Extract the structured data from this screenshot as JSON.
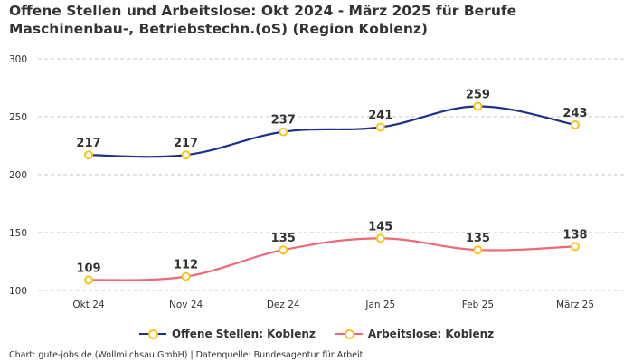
{
  "title": "Offene Stellen und Arbeitslose: Okt 2024 - März 2025 für Berufe Maschinenbau-, Betriebstechn.(oS) (Region Koblenz)",
  "source": "Chart: gute-jobs.de (Wollmilchsau GmbH) | Datenquelle: Bundesagentur für Arbeit",
  "chart_data": {
    "type": "line",
    "title": "Offene Stellen und Arbeitslose: Okt 2024 - März 2025 für Berufe Maschinenbau-, Betriebstechn.(oS) (Region Koblenz)",
    "categories": [
      "Okt 24",
      "Nov 24",
      "Dez 24",
      "Jan 25",
      "Feb 25",
      "März 25"
    ],
    "series": [
      {
        "name": "Offene Stellen: Koblenz",
        "values": [
          217,
          217,
          237,
          241,
          259,
          243
        ],
        "color": "#1f2f8a"
      },
      {
        "name": "Arbeitslose: Koblenz",
        "values": [
          109,
          112,
          135,
          145,
          135,
          138
        ],
        "color": "#f06878"
      }
    ],
    "marker_color": "#f5c518",
    "y_ticks": [
      100,
      150,
      200,
      250,
      300
    ],
    "ylim": [
      100,
      300
    ],
    "grid": true,
    "legend_position": "bottom"
  }
}
